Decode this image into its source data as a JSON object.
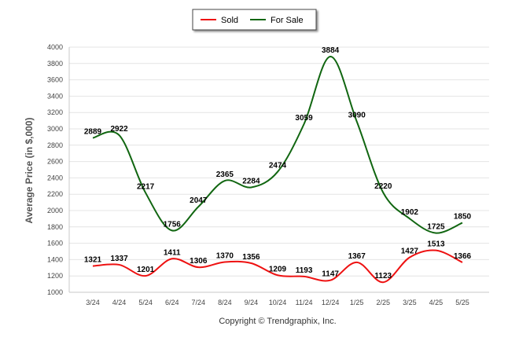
{
  "chart_data": {
    "type": "line",
    "title": "",
    "xlabel": "",
    "ylabel": "Average Price (in $,000)",
    "categories": [
      "3/24",
      "4/24",
      "5/24",
      "6/24",
      "7/24",
      "8/24",
      "9/24",
      "10/24",
      "11/24",
      "12/24",
      "1/25",
      "2/25",
      "3/25",
      "4/25",
      "5/25"
    ],
    "ylim": [
      1000,
      4000
    ],
    "yticks": [
      1000,
      1200,
      1400,
      1600,
      1800,
      2000,
      2200,
      2400,
      2600,
      2800,
      3000,
      3200,
      3400,
      3600,
      3800,
      4000
    ],
    "grid": true,
    "legend_position": "top-center",
    "series": [
      {
        "name": "Sold",
        "color": "#ee1111",
        "values": [
          1321,
          1337,
          1201,
          1411,
          1306,
          1370,
          1356,
          1209,
          1193,
          1147,
          1367,
          1123,
          1427,
          1513,
          1366
        ]
      },
      {
        "name": "For Sale",
        "color": "#116611",
        "values": [
          2889,
          2922,
          2217,
          1756,
          2047,
          2365,
          2284,
          2474,
          3059,
          3884,
          3090,
          2220,
          1902,
          1725,
          1850
        ]
      }
    ],
    "copyright": "Copyright © Trendgraphix, Inc."
  }
}
